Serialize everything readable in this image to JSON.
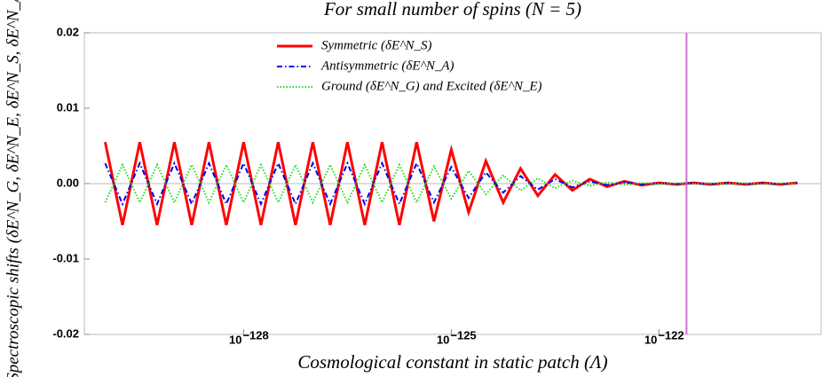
{
  "chart_data": {
    "type": "line",
    "title": "For small number of spins (N = 5)",
    "xlabel": "Cosmological constant in static patch (Λ)",
    "ylabel": "Spectroscopic shifts (δE^N_G, δE^N_E, δE^N_S, δE^N_A)",
    "log_x": true,
    "xlim": [
      5e-131,
      2.2e-120
    ],
    "xticks": [
      {
        "value": 1e-128,
        "label": "10",
        "exponent": "−128"
      },
      {
        "value": 1e-125,
        "label": "10",
        "exponent": "−125"
      },
      {
        "value": 1e-122,
        "label": "10",
        "exponent": "−122"
      }
    ],
    "ylim": [
      -0.02,
      0.02
    ],
    "yticks": [
      0.02,
      0.01,
      {
        "value": 0,
        "label": "0.00"
      },
      -0.01,
      -0.02
    ],
    "vline": {
      "x": 2.5e-122,
      "color": "#d070d0"
    },
    "x": [
      1e-130,
      1.78e-130,
      3.16e-130,
      5.62e-130,
      1e-129,
      1.78e-129,
      3.16e-129,
      5.62e-129,
      1e-128,
      1.78e-128,
      3.16e-128,
      5.62e-128,
      1e-127,
      1.78e-127,
      3.16e-127,
      5.62e-127,
      1e-126,
      1.78e-126,
      3.16e-126,
      5.62e-126,
      1e-125,
      1.78e-125,
      3.16e-125,
      5.62e-125,
      1e-124,
      1.78e-124,
      3.16e-124,
      5.62e-124,
      1e-123,
      1.78e-123,
      3.16e-123,
      5.62e-123,
      1e-122,
      1.78e-122,
      3.16e-122,
      5.62e-122,
      1e-121,
      1.78e-121,
      3.16e-121,
      5.62e-121,
      1e-120
    ],
    "series": [
      {
        "name": "Symmetric (δE^N_S)",
        "color": "#ff0000",
        "style": "solid",
        "width": 3,
        "values": [
          0.0055,
          -0.0055,
          0.0055,
          -0.0055,
          0.0055,
          -0.0055,
          0.0055,
          -0.0055,
          0.0055,
          -0.0055,
          0.0055,
          -0.0055,
          0.0055,
          -0.0055,
          0.0055,
          -0.0055,
          0.0055,
          -0.0055,
          0.0055,
          -0.005,
          0.0045,
          -0.0038,
          0.003,
          -0.0025,
          0.002,
          -0.0016,
          0.0012,
          -0.0009,
          0.0006,
          -0.0004,
          0.0003,
          -0.0002,
          0.0001,
          -0.0001,
          0.0001,
          -0.0001,
          0.0001,
          -0.0001,
          0.0001,
          -0.0001,
          0.0001
        ]
      },
      {
        "name": "Antisymmetric (δE^N_A)",
        "color": "#0000ee",
        "style": "dashdot",
        "width": 2,
        "values": [
          0.0027,
          -0.0027,
          0.0027,
          -0.0027,
          0.0027,
          -0.0027,
          0.0027,
          -0.0027,
          0.0027,
          -0.0027,
          0.0027,
          -0.0027,
          0.0027,
          -0.0027,
          0.0027,
          -0.0027,
          0.0027,
          -0.0027,
          0.0027,
          -0.0025,
          0.0022,
          -0.0019,
          0.0015,
          -0.0012,
          0.001,
          -0.0008,
          0.0006,
          -0.0005,
          0.0003,
          -0.0002,
          0.00015,
          -0.0001,
          5e-05,
          -5e-05,
          5e-05,
          -5e-05,
          5e-05,
          -5e-05,
          5e-05,
          -5e-05,
          5e-05
        ]
      },
      {
        "name": "Ground (δE^N_G) and Excited (δE^N_E)",
        "color": "#22dd22",
        "style": "dotted",
        "width": 2,
        "values": [
          -0.0025,
          0.0025,
          -0.0025,
          0.0025,
          -0.0025,
          0.0025,
          -0.0025,
          0.0025,
          -0.0025,
          0.0025,
          -0.0025,
          0.0025,
          -0.0025,
          0.0025,
          -0.0025,
          0.0025,
          -0.0025,
          0.0025,
          -0.0025,
          0.0023,
          -0.002,
          0.0017,
          -0.0014,
          0.0011,
          -0.0009,
          0.0007,
          -0.0006,
          0.0004,
          -0.0003,
          0.0002,
          -0.00015,
          0.0001,
          -5e-05,
          5e-05,
          -5e-05,
          5e-05,
          -5e-05,
          5e-05,
          -5e-05,
          5e-05,
          -5e-05
        ]
      }
    ]
  }
}
